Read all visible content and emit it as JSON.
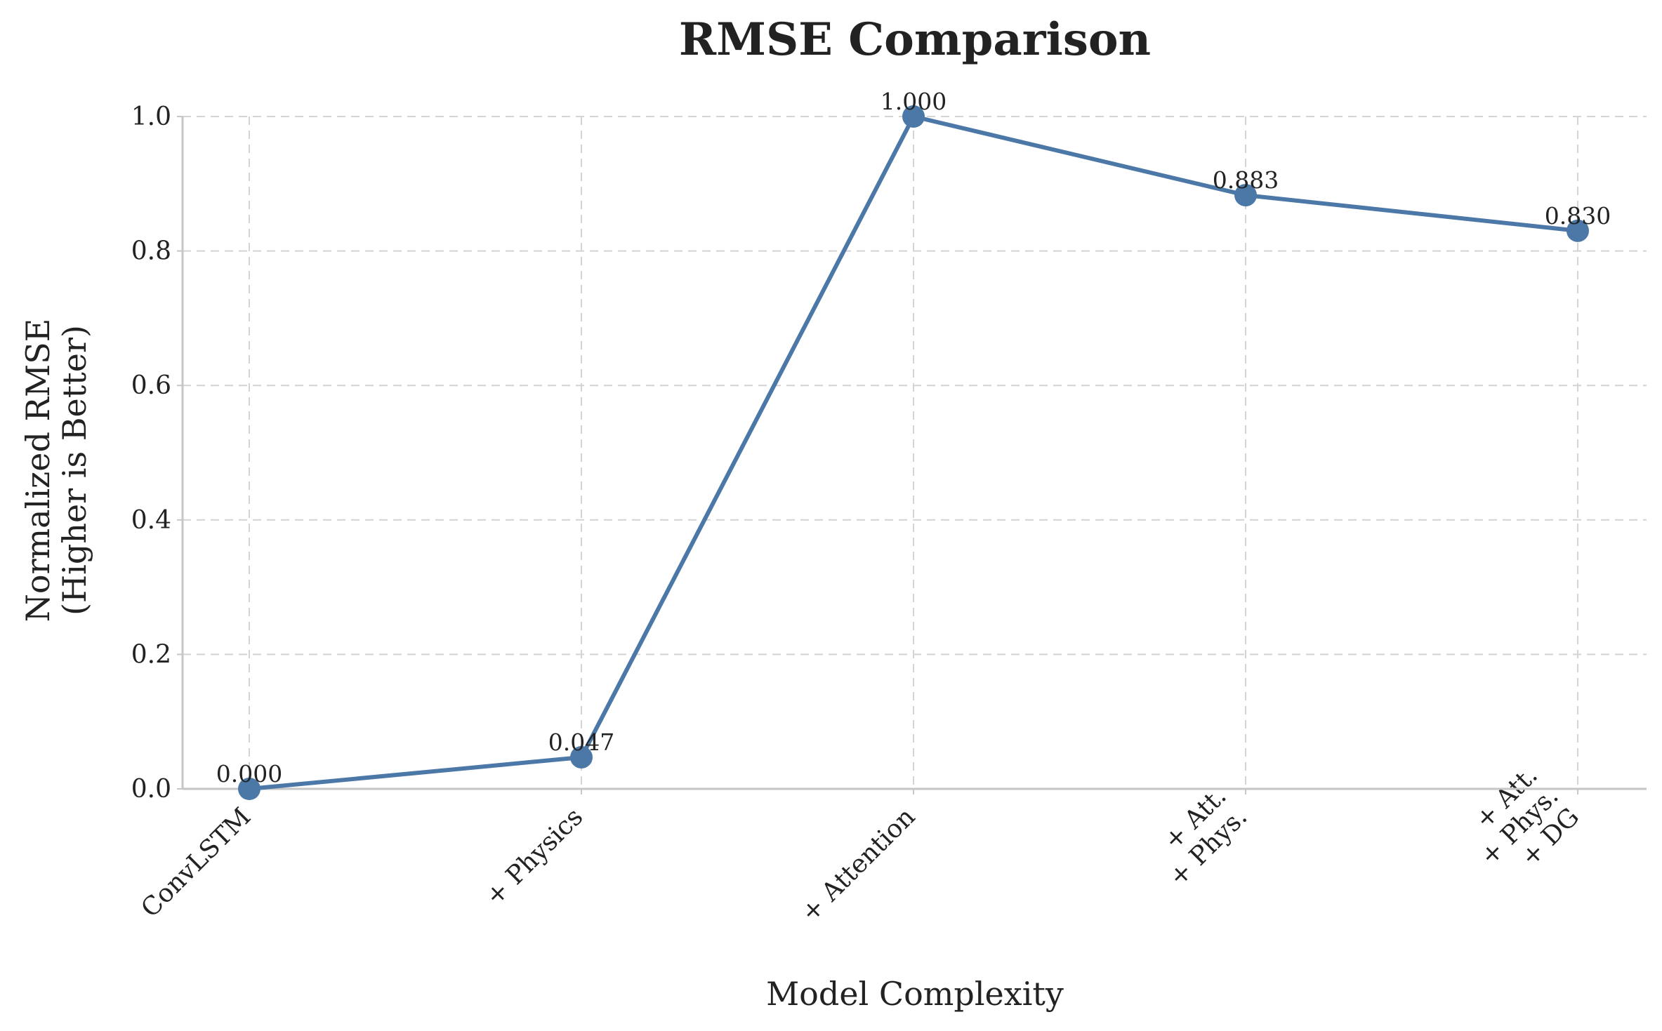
{
  "chart_data": {
    "type": "line",
    "title": "RMSE Comparison",
    "xlabel": "Model Complexity",
    "ylabel": [
      "Normalized RMSE",
      "(Higher is Better)"
    ],
    "categories": [
      [
        "ConvLSTM"
      ],
      [
        "+ Physics"
      ],
      [
        "+ Attention"
      ],
      [
        "+ Att.",
        "+ Phys."
      ],
      [
        "+ Att.",
        "+ Phys.",
        "+ DG"
      ]
    ],
    "series": [
      {
        "values": [
          0.0,
          0.047,
          1.0,
          0.883,
          0.83
        ],
        "value_labels": [
          "0.000",
          "0.047",
          "1.000",
          "0.883",
          "0.830"
        ],
        "color": "#4c78a8"
      }
    ],
    "ylim": [
      0,
      1.0
    ],
    "yticks": [
      0.0,
      0.2,
      0.4,
      0.6,
      0.8,
      1.0
    ],
    "ytick_labels": [
      "0.0",
      "0.2",
      "0.4",
      "0.6",
      "0.8",
      "1.0"
    ],
    "grid": true,
    "grid_style": "dashed",
    "x_tick_rotation": 45
  }
}
